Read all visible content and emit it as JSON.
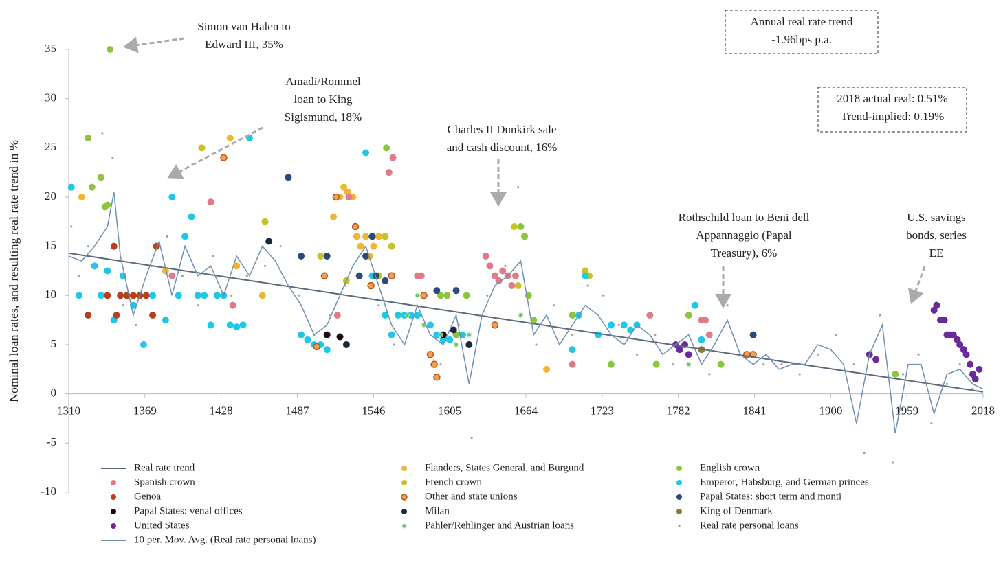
{
  "chart_data": {
    "type": "scatter",
    "y_label": "Nominal loan rates, and resulting real rate trend in %",
    "xlim": [
      1310,
      2018
    ],
    "ylim": [
      -10,
      35
    ],
    "xticks": [
      1310,
      1369,
      1428,
      1487,
      1546,
      1605,
      1664,
      1723,
      1782,
      1841,
      1900,
      1959,
      2018
    ],
    "yticks": [
      -10,
      -5,
      0,
      5,
      10,
      15,
      20,
      25,
      30,
      35
    ],
    "annotations": [
      {
        "lines": [
          "Simon van Halen to",
          "Edward III, 35%"
        ]
      },
      {
        "lines": [
          "Amadi/Rommel",
          "loan to King",
          "Sigismund, 18%"
        ]
      },
      {
        "lines": [
          "Charles II Dunkirk sale",
          "and cash discount, 16%"
        ]
      },
      {
        "lines": [
          "Rothschild loan to Beni dell",
          "Appannaggio (Papal",
          "Treasury), 6%"
        ]
      },
      {
        "lines": [
          "U.S. savings",
          "bonds, series",
          "EE"
        ]
      }
    ],
    "boxes": [
      {
        "lines": [
          "Annual real rate trend",
          "-1.96bps p.a."
        ]
      },
      {
        "lines": [
          "2018 actual real: 0.51%",
          "Trend-implied: 0.19%"
        ]
      }
    ],
    "series": [
      {
        "name": "Real rate trend",
        "marker": "line",
        "color": "#5a6b7d",
        "x": [
          1310,
          2018
        ],
        "values": [
          14.3,
          0.2
        ]
      },
      {
        "name": "Flanders, States General, and Burgund",
        "marker": "circle",
        "color": "#f0b630",
        "x": [
          1320,
          1385,
          1413,
          1435,
          1440,
          1460,
          1510,
          1515,
          1520,
          1523,
          1526,
          1530,
          1533,
          1536,
          1540,
          1543,
          1546,
          1550,
          1555,
          1680
        ],
        "values": [
          20,
          12.5,
          25,
          26,
          13,
          10,
          14,
          18,
          20,
          21,
          20.5,
          20,
          16,
          15,
          16,
          14,
          15,
          16,
          16,
          2.5
        ]
      },
      {
        "name": "English crown",
        "marker": "circle",
        "color": "#8cc63f",
        "x": [
          1325,
          1328,
          1335,
          1338,
          1340,
          1342,
          1556,
          1598,
          1603,
          1610,
          1618,
          1660,
          1663,
          1666,
          1670,
          1700,
          1730,
          1765,
          1790,
          1815,
          1950
        ],
        "values": [
          26,
          21,
          22,
          19,
          19.2,
          35,
          25,
          10,
          10,
          6,
          10,
          17,
          16,
          10,
          7.5,
          8,
          3,
          3,
          8,
          3,
          2
        ]
      },
      {
        "name": "Spanish crown",
        "marker": "circle",
        "color": "#e07b8a",
        "x": [
          1390,
          1420,
          1437,
          1518,
          1527,
          1558,
          1561,
          1580,
          1583,
          1633,
          1636,
          1640,
          1643,
          1646,
          1650,
          1653,
          1656,
          1700,
          1760,
          1800,
          1803,
          1806
        ],
        "values": [
          12,
          19.5,
          9,
          8,
          20,
          22.5,
          24,
          12,
          12,
          14,
          13,
          12,
          11.5,
          12.5,
          12,
          11,
          12,
          3,
          8,
          7.5,
          7.5,
          6
        ]
      },
      {
        "name": "French crown",
        "marker": "circle",
        "color": "#c7c12a",
        "x": [
          1413,
          1462,
          1505,
          1525,
          1540,
          1550,
          1555,
          1560,
          1655,
          1658,
          1710,
          1713
        ],
        "values": [
          25,
          17.5,
          14,
          11.5,
          14,
          12,
          16,
          15,
          17,
          11,
          12.5,
          12
        ]
      },
      {
        "name": "Emperor, Habsburg, and German princes",
        "marker": "circle",
        "color": "#1ec8e6",
        "x": [
          1312,
          1318,
          1330,
          1335,
          1340,
          1345,
          1352,
          1360,
          1368,
          1375,
          1385,
          1390,
          1395,
          1400,
          1405,
          1410,
          1415,
          1420,
          1425,
          1430,
          1435,
          1440,
          1445,
          1450,
          1490,
          1495,
          1500,
          1505,
          1510,
          1540,
          1545,
          1555,
          1560,
          1565,
          1570,
          1575,
          1580,
          1590,
          1595,
          1600,
          1605,
          1615,
          1700,
          1705,
          1710,
          1720,
          1730,
          1740,
          1745,
          1750,
          1795,
          1800
        ],
        "values": [
          21,
          10,
          13,
          10,
          12.5,
          7.5,
          12,
          9,
          5,
          10,
          7.5,
          20,
          10,
          16,
          18,
          10,
          10,
          7,
          10,
          10,
          7,
          6.8,
          7,
          26,
          6,
          5.5,
          5,
          5,
          4.5,
          24.5,
          12,
          8,
          6,
          8,
          8,
          8,
          8,
          7,
          6,
          5.5,
          5.5,
          6,
          4.5,
          8,
          12,
          6,
          7,
          7,
          6.5,
          7,
          9,
          5.5
        ]
      },
      {
        "name": "Genoa",
        "marker": "circle",
        "color": "#b5401d",
        "x": [
          1325,
          1340,
          1345,
          1350,
          1355,
          1360,
          1365,
          1370,
          1375,
          1378,
          1347
        ],
        "values": [
          8,
          10,
          15,
          10,
          10,
          10,
          10,
          10,
          8,
          15,
          8
        ]
      },
      {
        "name": "Other and state unions",
        "marker": "ring",
        "color": "#f0a050",
        "x": [
          1430,
          1502,
          1508,
          1517,
          1532,
          1544,
          1560,
          1585,
          1590,
          1593,
          1595,
          1640,
          1835,
          1840
        ],
        "values": [
          24,
          4.8,
          12,
          20,
          17,
          11,
          12,
          10,
          4,
          3,
          1.7,
          7,
          4,
          4
        ]
      },
      {
        "name": "Papal States: short term and monti",
        "marker": "circle",
        "color": "#2a4a7a",
        "x": [
          1480,
          1490,
          1510,
          1535,
          1540,
          1545,
          1548,
          1555,
          1595,
          1610,
          1840
        ],
        "values": [
          22,
          14,
          14,
          12,
          14,
          16,
          12,
          11.5,
          10.5,
          10.5,
          6
        ]
      },
      {
        "name": "Papal States: venal offices",
        "marker": "circle",
        "color": "#1a0a0a",
        "x": [
          1510,
          1520,
          1600
        ],
        "values": [
          6,
          5.8,
          6
        ]
      },
      {
        "name": "Milan",
        "marker": "circle",
        "color": "#1b2a3a",
        "x": [
          1465,
          1525,
          1608,
          1620
        ],
        "values": [
          15.5,
          5,
          6.5,
          5
        ]
      },
      {
        "name": "King of Denmark",
        "marker": "circle",
        "color": "#8a7b3a",
        "x": [
          1800
        ],
        "values": [
          4.5
        ]
      },
      {
        "name": "United States",
        "marker": "circle",
        "color": "#6a2a9c",
        "x": [
          1780,
          1783,
          1787,
          1790,
          1930,
          1935,
          1980,
          1982,
          1985,
          1988,
          1990,
          1992,
          1995,
          1998,
          2000,
          2003,
          2005,
          2008,
          2010,
          2012,
          2015
        ],
        "values": [
          5,
          4.5,
          5,
          4,
          4,
          3.5,
          8.5,
          9,
          7.5,
          7.5,
          6,
          6,
          6,
          5.5,
          5,
          4.5,
          4,
          3,
          2,
          1.5,
          2.5
        ]
      },
      {
        "name": "Pahler/Rehlinger and Austrian loans",
        "marker": "star",
        "color": "#6fbf6f",
        "x": [
          1572,
          1580,
          1585,
          1598,
          1610,
          1620,
          1660,
          1790
        ],
        "values": [
          8,
          10,
          7,
          6,
          5,
          6,
          8,
          3
        ]
      },
      {
        "name": "Real rate personal loans",
        "marker": "dot",
        "color": "#a0a0a0",
        "x": [
          1312,
          1318,
          1325,
          1336,
          1344,
          1352,
          1362,
          1374,
          1386,
          1398,
          1410,
          1422,
          1436,
          1448,
          1462,
          1474,
          1488,
          1500,
          1512,
          1524,
          1538,
          1550,
          1562,
          1574,
          1586,
          1598,
          1612,
          1622,
          1634,
          1648,
          1658,
          1672,
          1686,
          1700,
          1712,
          1724,
          1736,
          1750,
          1764,
          1778,
          1792,
          1806,
          1820,
          1834,
          1848,
          1862,
          1876,
          1890,
          1904,
          1918,
          1926,
          1938,
          1948,
          1956,
          1968,
          1978,
          1990,
          2000,
          2010
        ],
        "values": [
          17,
          12,
          15,
          26.5,
          24,
          9,
          7,
          13,
          16,
          12,
          9,
          14,
          10,
          12,
          13,
          15,
          10,
          6,
          8,
          11,
          14,
          9,
          5,
          8,
          10,
          3,
          7,
          -4.5,
          10,
          13,
          21,
          5,
          9,
          6,
          11,
          10,
          7,
          4,
          6,
          3,
          8,
          2,
          9,
          4,
          3,
          3,
          2,
          4,
          6,
          3,
          -6,
          8,
          -7,
          2,
          4,
          -3,
          1,
          3,
          0.5
        ]
      },
      {
        "name": "10 per. Mov. Avg. (Real rate personal loans)",
        "marker": "line",
        "color": "#6f8fb0",
        "x": [
          1310,
          1320,
          1330,
          1340,
          1345,
          1350,
          1360,
          1370,
          1380,
          1390,
          1400,
          1410,
          1420,
          1430,
          1440,
          1450,
          1460,
          1470,
          1480,
          1490,
          1500,
          1510,
          1520,
          1530,
          1540,
          1550,
          1560,
          1570,
          1580,
          1590,
          1600,
          1610,
          1620,
          1630,
          1640,
          1650,
          1660,
          1670,
          1680,
          1690,
          1700,
          1710,
          1720,
          1730,
          1740,
          1750,
          1760,
          1770,
          1780,
          1790,
          1800,
          1810,
          1820,
          1830,
          1840,
          1850,
          1860,
          1870,
          1880,
          1890,
          1900,
          1910,
          1920,
          1930,
          1940,
          1950,
          1960,
          1970,
          1980,
          1990,
          2000,
          2010,
          2018
        ],
        "values": [
          14,
          13.5,
          15,
          17,
          20.5,
          14,
          8,
          12,
          15.5,
          10,
          15,
          12,
          13,
          10,
          14,
          12,
          15,
          13.5,
          11,
          9,
          6,
          7,
          10,
          13,
          15,
          11,
          7,
          5,
          9,
          6,
          5,
          8,
          1,
          8,
          11,
          12,
          13.5,
          6,
          8,
          5,
          7,
          9,
          8,
          6,
          5,
          7,
          6,
          4,
          5,
          6,
          3,
          5,
          7.5,
          4,
          3,
          4,
          2.5,
          3,
          3,
          5,
          4.5,
          3,
          -3,
          4,
          7,
          -4,
          3,
          3,
          -2,
          2,
          2.5,
          1,
          0.5
        ]
      }
    ]
  }
}
